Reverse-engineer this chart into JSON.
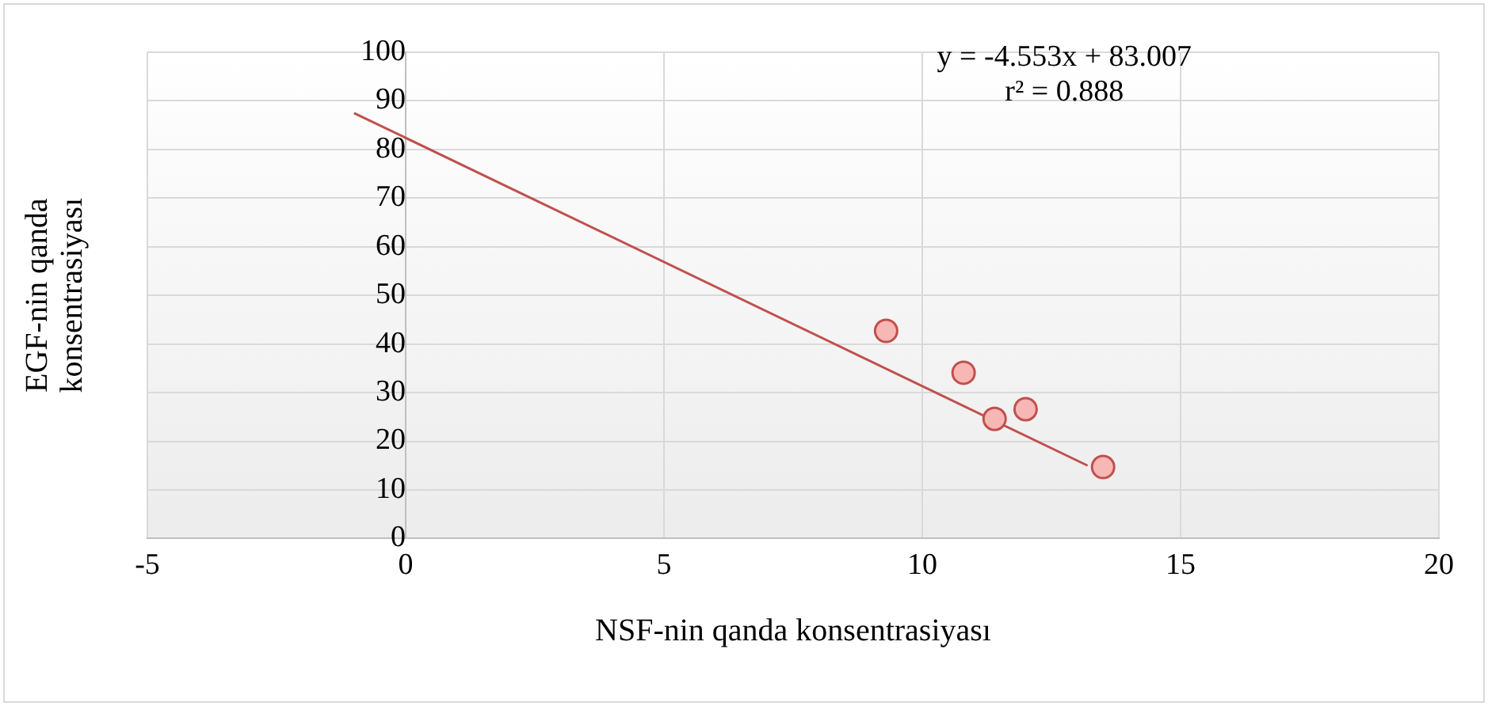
{
  "chart_data": {
    "type": "scatter",
    "xlabel": "NSF-nin qanda konsentrasiyası",
    "ylabel": "EGF-nin qanda\nkonsentrasiyası",
    "x": [
      9.3,
      10.8,
      11.4,
      12.0,
      13.5
    ],
    "xlim": [
      -5,
      20
    ],
    "xticks": [
      -5,
      0,
      5,
      10,
      15,
      20
    ],
    "ylim": [
      0,
      100
    ],
    "yticks": [
      0,
      10,
      20,
      30,
      40,
      50,
      60,
      70,
      80,
      90,
      100
    ],
    "grid": true,
    "legend": false,
    "marker": "circle",
    "series": [
      {
        "color": "#c0504d",
        "values": [
          42.7,
          34.1,
          24.6,
          26.6,
          14.7
        ]
      },
      {
        "type": "line",
        "marker": "none",
        "color": "#c0504d",
        "x": [
          -1,
          13.2
        ],
        "values": [
          87.5,
          15
        ]
      }
    ],
    "annotations": [
      "y = -4.553x + 83.007",
      "r² = 0.888"
    ]
  }
}
